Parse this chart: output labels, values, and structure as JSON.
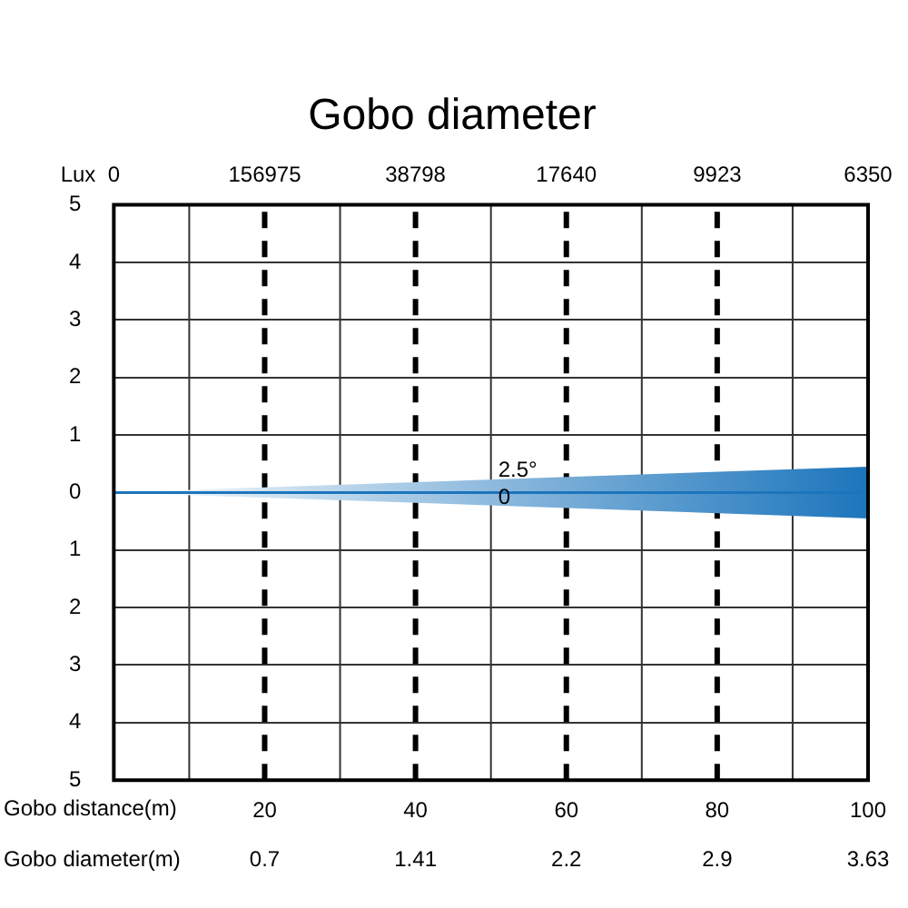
{
  "chart_data": {
    "type": "line",
    "title": "Gobo diameter",
    "xlabel": "Gobo distance(m)",
    "x": [
      0,
      100
    ],
    "series": [
      {
        "color": "#1c75bc",
        "values": [
          0,
          0
        ],
        "lower": [
          0,
          -0.45
        ],
        "upper": [
          0,
          0.45
        ]
      }
    ],
    "xlim": [
      0,
      100
    ],
    "xticks": [
      20,
      40,
      60,
      80,
      100
    ],
    "ylim": [
      -5,
      5
    ],
    "yticks": [
      {
        "value": -5,
        "label": "5"
      },
      {
        "value": -4,
        "label": "4"
      },
      {
        "value": -3,
        "label": "3"
      },
      {
        "value": -2,
        "label": "2"
      },
      {
        "value": -1,
        "label": "1"
      },
      0,
      1,
      2,
      3,
      4,
      5
    ],
    "ref_lines": [
      {
        "axis": "x",
        "value": 10,
        "color": "#333333",
        "line_style": "solid"
      },
      {
        "axis": "x",
        "value": 30,
        "color": "#333333",
        "line_style": "solid"
      },
      {
        "axis": "x",
        "value": 50,
        "color": "#333333",
        "line_style": "solid"
      },
      {
        "axis": "x",
        "value": 70,
        "color": "#333333",
        "line_style": "solid"
      },
      {
        "axis": "x",
        "value": 90,
        "color": "#333333",
        "line_style": "solid"
      },
      {
        "axis": "x",
        "value": 20,
        "color": "#000000",
        "line_style": "dashed"
      },
      {
        "axis": "x",
        "value": 40,
        "color": "#000000",
        "line_style": "dashed"
      },
      {
        "axis": "x",
        "value": 60,
        "color": "#000000",
        "line_style": "dashed"
      },
      {
        "axis": "x",
        "value": 80,
        "color": "#000000",
        "line_style": "dashed"
      }
    ],
    "annotations": [
      "Lux",
      "0",
      "156975",
      "38798",
      "17640",
      "9923",
      "6350",
      "Gobo diameter(m)",
      "0.7",
      "1.41",
      "2.2",
      "2.9",
      "3.63",
      "2.5°",
      "0"
    ],
    "grid": "y",
    "legend": false
  }
}
